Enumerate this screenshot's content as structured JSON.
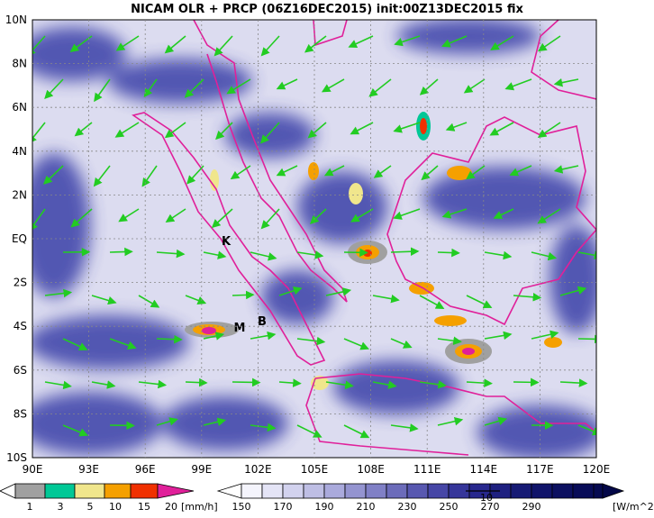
{
  "title": "NICAM OLR + PRCP (06Z16DEC2015) init:00Z13DEC2015 fix",
  "lat_labels": [
    "10N",
    "8N",
    "6N",
    "4N",
    "2N",
    "EQ",
    "2S",
    "4S",
    "6S",
    "8S",
    "10S"
  ],
  "lon_labels": [
    "90E",
    "93E",
    "96E",
    "99E",
    "102E",
    "105E",
    "108E",
    "111E",
    "114E",
    "117E",
    "120E"
  ],
  "places": [
    "K",
    "M",
    "B"
  ],
  "precip_bar": {
    "labels": [
      "1",
      "3",
      "5",
      "10",
      "15",
      "20"
    ],
    "unit": "[mm/h]"
  },
  "olr_bar": {
    "labels": [
      "150",
      "170",
      "190",
      "210",
      "230",
      "250",
      "270",
      "290"
    ],
    "unit": "[W/m^2]",
    "vector_ref": "10"
  }
}
